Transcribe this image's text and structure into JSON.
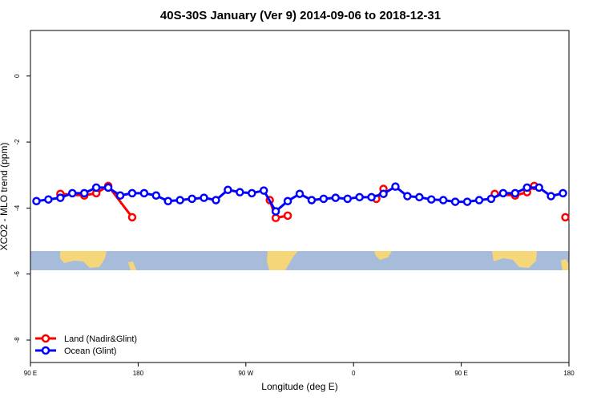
{
  "chart_data": {
    "type": "line",
    "title": "40S-30S January (Ver 9)   2014-09-06 to 2018-12-31",
    "x_label": "Longitude (deg E)",
    "y_label": "XCO2 - MLO trend (ppm)",
    "xlim": [
      90,
      540
    ],
    "ylim": [
      -8.68,
      1.38
    ],
    "xticks": [
      {
        "value": 90,
        "label": "90 E"
      },
      {
        "value": 180,
        "label": "180"
      },
      {
        "value": 270,
        "label": "90 W"
      },
      {
        "value": 360,
        "label": "0"
      },
      {
        "value": 450,
        "label": "90 E"
      },
      {
        "value": 540,
        "label": "180"
      }
    ],
    "yticks": [
      0,
      -2,
      -4,
      -6,
      -8
    ],
    "legend": "bottom-left",
    "series": [
      {
        "name": "Land (Nadir&Glint)",
        "color": "#ff0000",
        "x": [
          115,
          135,
          145,
          155,
          175,
          null,
          290,
          295,
          305,
          null,
          379,
          385,
          null,
          478,
          495,
          505,
          511,
          null,
          537
        ],
        "values": [
          -3.57,
          -3.62,
          -3.55,
          -3.33,
          -4.28,
          null,
          -3.76,
          -4.3,
          -4.23,
          null,
          -3.72,
          -3.42,
          null,
          -3.57,
          -3.62,
          -3.52,
          -3.33,
          null,
          -4.28
        ]
      },
      {
        "name": "Ocean (Glint)",
        "color": "#0000ff",
        "x": [
          95,
          105,
          115,
          125,
          135,
          145,
          155,
          165,
          175,
          185,
          195,
          205,
          215,
          225,
          235,
          245,
          255,
          265,
          275,
          285,
          295,
          305,
          315,
          325,
          335,
          345,
          355,
          365,
          375,
          385,
          395,
          405,
          415,
          425,
          435,
          445,
          455,
          465,
          475,
          485,
          495,
          505,
          515,
          525,
          535
        ],
        "values": [
          -3.79,
          -3.74,
          -3.69,
          -3.55,
          -3.55,
          -3.38,
          -3.38,
          -3.62,
          -3.55,
          -3.55,
          -3.62,
          -3.79,
          -3.76,
          -3.72,
          -3.69,
          -3.76,
          -3.45,
          -3.52,
          -3.55,
          -3.47,
          -4.1,
          -3.79,
          -3.57,
          -3.76,
          -3.72,
          -3.69,
          -3.72,
          -3.67,
          -3.67,
          -3.57,
          -3.35,
          -3.64,
          -3.67,
          -3.74,
          -3.76,
          -3.81,
          -3.81,
          -3.76,
          -3.72,
          -3.55,
          -3.55,
          -3.38,
          -3.38,
          -3.64,
          -3.55
        ]
      }
    ]
  }
}
